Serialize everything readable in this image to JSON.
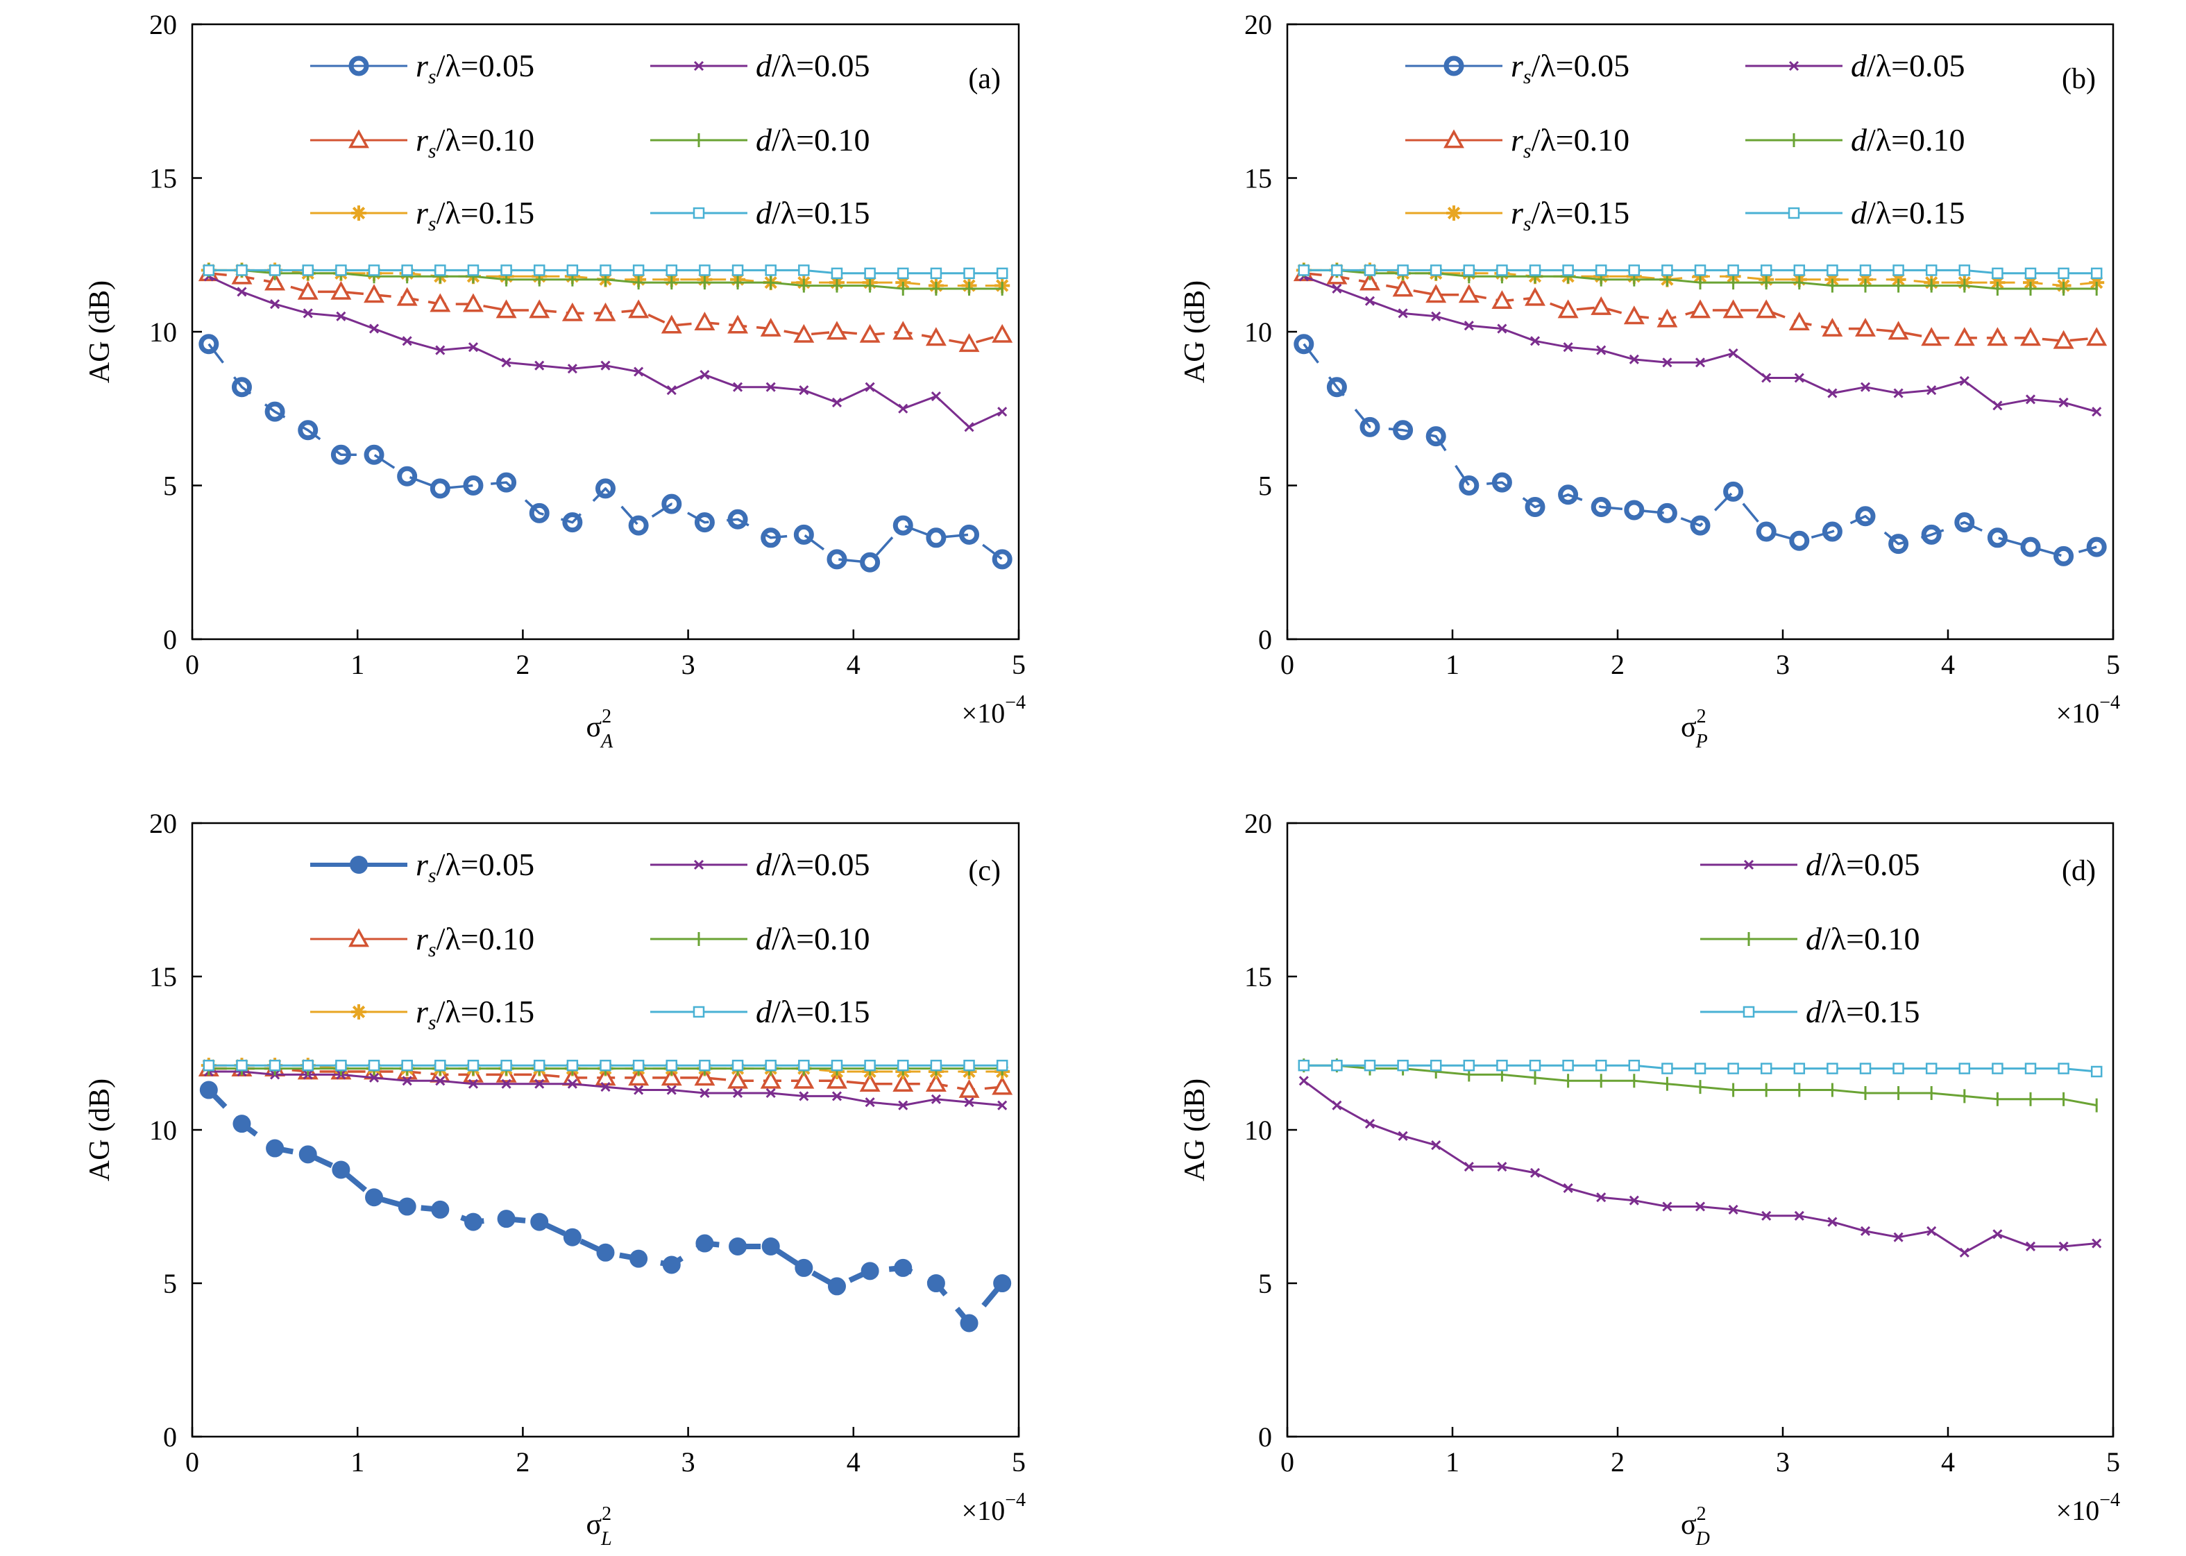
{
  "chart_data": [
    {
      "type": "line",
      "panel_label": "(a)",
      "ylabel": "AG (dB)",
      "xlabel": {
        "base": "σ",
        "sup": "2",
        "sub": "A"
      },
      "x_multiplier": {
        "base": "×10",
        "exp": "−4"
      },
      "xlim": [
        0,
        5
      ],
      "ylim": [
        0,
        20
      ],
      "xticks": [
        "0",
        "1",
        "2",
        "3",
        "4",
        "5"
      ],
      "yticks": [
        "0",
        "5",
        "10",
        "15",
        "20"
      ],
      "x": [
        0.1,
        0.3,
        0.5,
        0.7,
        0.9,
        1.1,
        1.3,
        1.5,
        1.7,
        1.9,
        2.1,
        2.3,
        2.5,
        2.7,
        2.9,
        3.1,
        3.3,
        3.5,
        3.7,
        3.9,
        4.1,
        4.3,
        4.5,
        4.7,
        4.9
      ],
      "legend": {
        "placement": "top",
        "columns": 2
      },
      "series": [
        {
          "name": {
            "pre": "r",
            "sub": "s",
            "post": "/λ=0.05"
          },
          "color": "#3c6fb6",
          "marker": "circle-dot",
          "line": "dashed",
          "values": [
            9.6,
            8.2,
            7.4,
            6.8,
            6.0,
            6.0,
            5.3,
            4.9,
            5.0,
            5.1,
            4.1,
            3.8,
            4.9,
            3.7,
            4.4,
            3.8,
            3.9,
            3.3,
            3.4,
            2.6,
            2.5,
            3.7,
            3.3,
            3.4,
            2.6
          ]
        },
        {
          "name": {
            "pre": "r",
            "sub": "s",
            "post": "/λ=0.10"
          },
          "color": "#d35433",
          "marker": "triangle",
          "line": "dashed",
          "values": [
            11.9,
            11.8,
            11.6,
            11.3,
            11.3,
            11.2,
            11.1,
            10.9,
            10.9,
            10.7,
            10.7,
            10.6,
            10.6,
            10.7,
            10.2,
            10.3,
            10.2,
            10.1,
            9.9,
            10.0,
            9.9,
            10.0,
            9.8,
            9.6,
            9.9
          ]
        },
        {
          "name": {
            "pre": "r",
            "sub": "s",
            "post": "/λ=0.15"
          },
          "color": "#e8a623",
          "marker": "star",
          "line": "dashed",
          "values": [
            12.0,
            12.0,
            12.0,
            11.9,
            11.9,
            11.9,
            11.9,
            11.8,
            11.8,
            11.8,
            11.8,
            11.8,
            11.7,
            11.7,
            11.7,
            11.7,
            11.7,
            11.6,
            11.6,
            11.6,
            11.6,
            11.6,
            11.5,
            11.5,
            11.5
          ]
        },
        {
          "name": {
            "pre": "d",
            "sub": "",
            "post": "/λ=0.05"
          },
          "color": "#7b2d8e",
          "marker": "x",
          "line": "solid",
          "values": [
            11.8,
            11.3,
            10.9,
            10.6,
            10.5,
            10.1,
            9.7,
            9.4,
            9.5,
            9.0,
            8.9,
            8.8,
            8.9,
            8.7,
            8.1,
            8.6,
            8.2,
            8.2,
            8.1,
            7.7,
            8.2,
            7.5,
            7.9,
            6.9,
            7.4
          ]
        },
        {
          "name": {
            "pre": "d",
            "sub": "",
            "post": "/λ=0.10"
          },
          "color": "#6aa334",
          "marker": "plus",
          "line": "solid",
          "values": [
            12.0,
            12.0,
            11.9,
            11.9,
            11.9,
            11.8,
            11.8,
            11.8,
            11.8,
            11.7,
            11.7,
            11.7,
            11.7,
            11.6,
            11.6,
            11.6,
            11.6,
            11.6,
            11.5,
            11.5,
            11.5,
            11.4,
            11.4,
            11.4,
            11.4
          ]
        },
        {
          "name": {
            "pre": "d",
            "sub": "",
            "post": "/λ=0.15"
          },
          "color": "#49b1d4",
          "marker": "square",
          "line": "solid",
          "values": [
            12.0,
            12.0,
            12.0,
            12.0,
            12.0,
            12.0,
            12.0,
            12.0,
            12.0,
            12.0,
            12.0,
            12.0,
            12.0,
            12.0,
            12.0,
            12.0,
            12.0,
            12.0,
            12.0,
            11.9,
            11.9,
            11.9,
            11.9,
            11.9,
            11.9
          ]
        }
      ]
    },
    {
      "type": "line",
      "panel_label": "(b)",
      "ylabel": "AG (dB)",
      "xlabel": {
        "base": "σ",
        "sup": "2",
        "sub": "P"
      },
      "x_multiplier": {
        "base": "×10",
        "exp": "−4"
      },
      "xlim": [
        0,
        5
      ],
      "ylim": [
        0,
        20
      ],
      "xticks": [
        "0",
        "1",
        "2",
        "3",
        "4",
        "5"
      ],
      "yticks": [
        "0",
        "5",
        "10",
        "15",
        "20"
      ],
      "x": [
        0.1,
        0.3,
        0.5,
        0.7,
        0.9,
        1.1,
        1.3,
        1.5,
        1.7,
        1.9,
        2.1,
        2.3,
        2.5,
        2.7,
        2.9,
        3.1,
        3.3,
        3.5,
        3.7,
        3.9,
        4.1,
        4.3,
        4.5,
        4.7,
        4.9
      ],
      "legend": {
        "placement": "top",
        "columns": 2
      },
      "series": [
        {
          "name": {
            "pre": "r",
            "sub": "s",
            "post": "/λ=0.05"
          },
          "color": "#3c6fb6",
          "marker": "circle-dot",
          "line": "dashed",
          "values": [
            9.6,
            8.2,
            6.9,
            6.8,
            6.6,
            5.0,
            5.1,
            4.3,
            4.7,
            4.3,
            4.2,
            4.1,
            3.7,
            4.8,
            3.5,
            3.2,
            3.5,
            4.0,
            3.1,
            3.4,
            3.8,
            3.3,
            3.0,
            2.7,
            3.0
          ]
        },
        {
          "name": {
            "pre": "r",
            "sub": "s",
            "post": "/λ=0.10"
          },
          "color": "#d35433",
          "marker": "triangle",
          "line": "dashed",
          "values": [
            11.9,
            11.8,
            11.6,
            11.4,
            11.2,
            11.2,
            11.0,
            11.1,
            10.7,
            10.8,
            10.5,
            10.4,
            10.7,
            10.7,
            10.7,
            10.3,
            10.1,
            10.1,
            10.0,
            9.8,
            9.8,
            9.8,
            9.8,
            9.7,
            9.8
          ]
        },
        {
          "name": {
            "pre": "r",
            "sub": "s",
            "post": "/λ=0.15"
          },
          "color": "#e8a623",
          "marker": "star",
          "line": "dashed",
          "values": [
            12.0,
            12.0,
            12.0,
            11.9,
            11.9,
            11.9,
            11.9,
            11.8,
            11.8,
            11.8,
            11.8,
            11.7,
            11.8,
            11.8,
            11.7,
            11.7,
            11.7,
            11.7,
            11.7,
            11.6,
            11.6,
            11.6,
            11.6,
            11.5,
            11.6
          ]
        },
        {
          "name": {
            "pre": "d",
            "sub": "",
            "post": "/λ=0.05"
          },
          "color": "#7b2d8e",
          "marker": "x",
          "line": "solid",
          "values": [
            11.8,
            11.4,
            11.0,
            10.6,
            10.5,
            10.2,
            10.1,
            9.7,
            9.5,
            9.4,
            9.1,
            9.0,
            9.0,
            9.3,
            8.5,
            8.5,
            8.0,
            8.2,
            8.0,
            8.1,
            8.4,
            7.6,
            7.8,
            7.7,
            7.4
          ]
        },
        {
          "name": {
            "pre": "d",
            "sub": "",
            "post": "/λ=0.10"
          },
          "color": "#6aa334",
          "marker": "plus",
          "line": "solid",
          "values": [
            12.0,
            12.0,
            11.9,
            11.9,
            11.9,
            11.8,
            11.8,
            11.8,
            11.8,
            11.7,
            11.7,
            11.7,
            11.6,
            11.6,
            11.6,
            11.6,
            11.5,
            11.5,
            11.5,
            11.5,
            11.5,
            11.4,
            11.4,
            11.4,
            11.4
          ]
        },
        {
          "name": {
            "pre": "d",
            "sub": "",
            "post": "/λ=0.15"
          },
          "color": "#49b1d4",
          "marker": "square",
          "line": "solid",
          "values": [
            12.0,
            12.0,
            12.0,
            12.0,
            12.0,
            12.0,
            12.0,
            12.0,
            12.0,
            12.0,
            12.0,
            12.0,
            12.0,
            12.0,
            12.0,
            12.0,
            12.0,
            12.0,
            12.0,
            12.0,
            12.0,
            11.9,
            11.9,
            11.9,
            11.9
          ]
        }
      ]
    },
    {
      "type": "line",
      "panel_label": "(c)",
      "ylabel": "AG (dB)",
      "xlabel": {
        "base": "σ",
        "sup": "2",
        "sub": "L"
      },
      "x_multiplier": {
        "base": "×10",
        "exp": "−4"
      },
      "xlim": [
        0,
        5
      ],
      "ylim": [
        0,
        20
      ],
      "xticks": [
        "0",
        "1",
        "2",
        "3",
        "4",
        "5"
      ],
      "yticks": [
        "0",
        "5",
        "10",
        "15",
        "20"
      ],
      "x": [
        0.1,
        0.3,
        0.5,
        0.7,
        0.9,
        1.1,
        1.3,
        1.5,
        1.7,
        1.9,
        2.1,
        2.3,
        2.5,
        2.7,
        2.9,
        3.1,
        3.3,
        3.5,
        3.7,
        3.9,
        4.1,
        4.3,
        4.5,
        4.7,
        4.9
      ],
      "legend": {
        "placement": "top",
        "columns": 2
      },
      "series": [
        {
          "name": {
            "pre": "r",
            "sub": "s",
            "post": "/λ=0.05"
          },
          "color": "#3c6fb6",
          "marker": "circle",
          "line": "dashed",
          "values": [
            11.3,
            10.2,
            9.4,
            9.2,
            8.7,
            7.8,
            7.5,
            7.4,
            7.0,
            7.1,
            7.0,
            6.5,
            6.0,
            5.8,
            5.6,
            6.3,
            6.2,
            6.2,
            5.5,
            4.9,
            5.4,
            5.5,
            5.0,
            3.7,
            5.0
          ]
        },
        {
          "name": {
            "pre": "r",
            "sub": "s",
            "post": "/λ=0.10"
          },
          "color": "#d35433",
          "marker": "triangle",
          "line": "dashed",
          "values": [
            12.0,
            12.0,
            12.0,
            11.9,
            11.9,
            11.9,
            11.9,
            11.8,
            11.8,
            11.8,
            11.8,
            11.7,
            11.7,
            11.7,
            11.7,
            11.7,
            11.6,
            11.6,
            11.6,
            11.6,
            11.5,
            11.5,
            11.5,
            11.3,
            11.4
          ]
        },
        {
          "name": {
            "pre": "r",
            "sub": "s",
            "post": "/λ=0.15"
          },
          "color": "#e8a623",
          "marker": "star",
          "line": "dashed",
          "values": [
            12.1,
            12.1,
            12.1,
            12.1,
            12.0,
            12.0,
            12.0,
            12.0,
            12.0,
            12.0,
            12.0,
            12.0,
            12.0,
            12.0,
            12.0,
            12.0,
            12.0,
            12.0,
            12.0,
            11.9,
            11.9,
            11.9,
            11.9,
            11.9,
            11.9
          ]
        },
        {
          "name": {
            "pre": "d",
            "sub": "",
            "post": "/λ=0.05"
          },
          "color": "#7b2d8e",
          "marker": "x",
          "line": "solid",
          "values": [
            11.9,
            11.9,
            11.8,
            11.8,
            11.8,
            11.7,
            11.6,
            11.6,
            11.5,
            11.5,
            11.5,
            11.5,
            11.4,
            11.3,
            11.3,
            11.2,
            11.2,
            11.2,
            11.1,
            11.1,
            10.9,
            10.8,
            11.0,
            10.9,
            10.8
          ]
        },
        {
          "name": {
            "pre": "d",
            "sub": "",
            "post": "/λ=0.10"
          },
          "color": "#6aa334",
          "marker": "plus",
          "line": "solid",
          "values": [
            12.0,
            12.0,
            12.0,
            12.0,
            12.0,
            12.0,
            12.0,
            12.0,
            12.0,
            12.0,
            12.0,
            12.0,
            12.0,
            12.0,
            12.0,
            12.0,
            12.0,
            12.0,
            12.0,
            12.0,
            12.0,
            12.0,
            12.0,
            12.0,
            12.0
          ]
        },
        {
          "name": {
            "pre": "d",
            "sub": "",
            "post": "/λ=0.15"
          },
          "color": "#49b1d4",
          "marker": "square",
          "line": "solid",
          "values": [
            12.1,
            12.1,
            12.1,
            12.1,
            12.1,
            12.1,
            12.1,
            12.1,
            12.1,
            12.1,
            12.1,
            12.1,
            12.1,
            12.1,
            12.1,
            12.1,
            12.1,
            12.1,
            12.1,
            12.1,
            12.1,
            12.1,
            12.1,
            12.1,
            12.1
          ]
        }
      ]
    },
    {
      "type": "line",
      "panel_label": "(d)",
      "ylabel": "AG (dB)",
      "xlabel": {
        "base": "σ",
        "sup": "2",
        "sub": "D"
      },
      "x_multiplier": {
        "base": "×10",
        "exp": "−4"
      },
      "xlim": [
        0,
        5
      ],
      "ylim": [
        0,
        20
      ],
      "xticks": [
        "0",
        "1",
        "2",
        "3",
        "4",
        "5"
      ],
      "yticks": [
        "0",
        "5",
        "10",
        "15",
        "20"
      ],
      "x": [
        0.1,
        0.3,
        0.5,
        0.7,
        0.9,
        1.1,
        1.3,
        1.5,
        1.7,
        1.9,
        2.1,
        2.3,
        2.5,
        2.7,
        2.9,
        3.1,
        3.3,
        3.5,
        3.7,
        3.9,
        4.1,
        4.3,
        4.5,
        4.7,
        4.9
      ],
      "legend": {
        "placement": "top-right",
        "columns": 1
      },
      "series": [
        {
          "name": {
            "pre": "d",
            "sub": "",
            "post": "/λ=0.05"
          },
          "color": "#7b2d8e",
          "marker": "x",
          "line": "solid",
          "values": [
            11.6,
            10.8,
            10.2,
            9.8,
            9.5,
            8.8,
            8.8,
            8.6,
            8.1,
            7.8,
            7.7,
            7.5,
            7.5,
            7.4,
            7.2,
            7.2,
            7.0,
            6.7,
            6.5,
            6.7,
            6.0,
            6.6,
            6.2,
            6.2,
            6.3
          ]
        },
        {
          "name": {
            "pre": "d",
            "sub": "",
            "post": "/λ=0.10"
          },
          "color": "#6aa334",
          "marker": "plus",
          "line": "solid",
          "values": [
            12.1,
            12.1,
            12.0,
            12.0,
            11.9,
            11.8,
            11.8,
            11.7,
            11.6,
            11.6,
            11.6,
            11.5,
            11.4,
            11.3,
            11.3,
            11.3,
            11.3,
            11.2,
            11.2,
            11.2,
            11.1,
            11.0,
            11.0,
            11.0,
            10.8
          ]
        },
        {
          "name": {
            "pre": "d",
            "sub": "",
            "post": "/λ=0.15"
          },
          "color": "#49b1d4",
          "marker": "square",
          "line": "solid",
          "values": [
            12.1,
            12.1,
            12.1,
            12.1,
            12.1,
            12.1,
            12.1,
            12.1,
            12.1,
            12.1,
            12.1,
            12.0,
            12.0,
            12.0,
            12.0,
            12.0,
            12.0,
            12.0,
            12.0,
            12.0,
            12.0,
            12.0,
            12.0,
            12.0,
            11.9
          ]
        }
      ]
    }
  ]
}
